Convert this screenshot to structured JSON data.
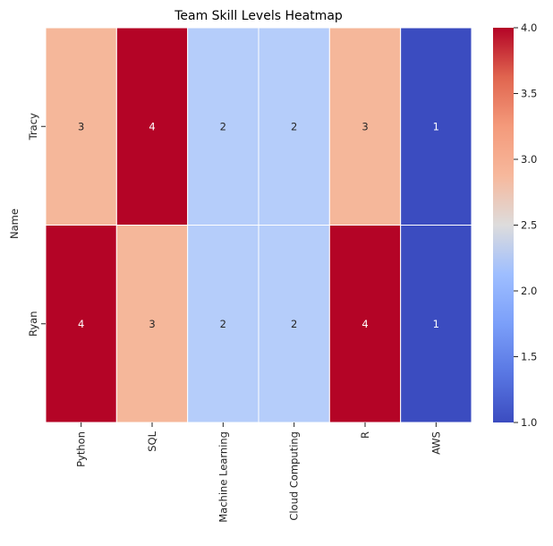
{
  "chart_data": {
    "type": "heatmap",
    "title": "Team Skill Levels Heatmap",
    "xlabel": "",
    "ylabel": "Name",
    "rows": [
      "Tracy",
      "Ryan"
    ],
    "columns": [
      "Python",
      "SQL",
      "Machine Learning",
      "Cloud Computing",
      "R",
      "AWS"
    ],
    "values": [
      [
        3,
        4,
        2,
        2,
        3,
        1
      ],
      [
        4,
        3,
        2,
        2,
        4,
        1
      ]
    ],
    "colormap": "coolwarm",
    "vmin": 1,
    "vmax": 4,
    "annotate": true,
    "grid": false,
    "colorbar": {
      "ticks": [
        "1.0",
        "1.5",
        "2.0",
        "2.5",
        "3.0",
        "3.5",
        "4.0"
      ],
      "placement": "right"
    }
  },
  "colors": {
    "1": "#3b4cc0",
    "2": "#b5cdfa",
    "3": "#f5b79a",
    "4": "#b40426",
    "cell_border": "#ffffff"
  }
}
